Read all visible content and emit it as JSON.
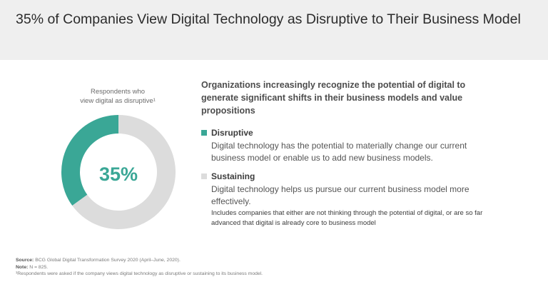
{
  "title": "35% of Companies View Digital Technology as Disruptive to Their Business Model",
  "donut": {
    "caption_line1": "Respondents who",
    "caption_line2": "view digital as disruptive¹",
    "center_label": "35%"
  },
  "headline": "Organizations increasingly recognize the potential of digital to generate significant shifts in their business models and value propositions",
  "legend": {
    "disruptive": {
      "label": "Disruptive",
      "description": "Digital technology has the potential to materially change our current business model or enable us to add new business models."
    },
    "sustaining": {
      "label": "Sustaining",
      "description": "Digital technology helps us pursue our current business model more effectively.",
      "note": "Includes companies that either are not thinking through the potential of digital, or are so far advanced that digital is already core to business model"
    }
  },
  "footer": {
    "source_label": "Source:",
    "source_text": "BCG Global Digital Transformation Survey 2020 (April–June, 2020).",
    "note_label": "Note:",
    "note_text": "N = 825.",
    "footnote": "¹Respondents were asked if the company views digital technology as disruptive or sustaining to its business model."
  },
  "colors": {
    "disruptive": "#3aa796",
    "sustaining": "#dcdcdc",
    "center_text": "#3aa796"
  },
  "chart_data": {
    "type": "pie",
    "style": "donut",
    "title": "Respondents who view digital as disruptive¹",
    "categories": [
      "Disruptive",
      "Sustaining"
    ],
    "values": [
      35,
      65
    ],
    "unit": "%",
    "center_label": "35%"
  }
}
